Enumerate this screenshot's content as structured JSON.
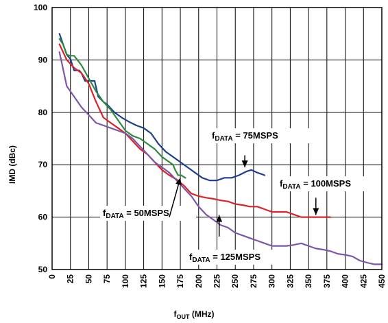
{
  "chart_data": {
    "type": "line",
    "title": "",
    "xlabel": "f",
    "xlabel_sub": "OUT",
    "xlabel_unit": " (MHz)",
    "ylabel": "IMD (dBc)",
    "xlim": [
      0,
      450
    ],
    "ylim": [
      50,
      100
    ],
    "xticks": [
      0,
      25,
      50,
      75,
      100,
      125,
      150,
      175,
      200,
      225,
      250,
      275,
      300,
      325,
      350,
      375,
      400,
      425,
      450
    ],
    "yticks": [
      50,
      60,
      70,
      80,
      90,
      100
    ],
    "grid": true,
    "series": [
      {
        "name": "fDATA = 75MSPS",
        "color": "#1f3f8f",
        "points": [
          [
            10,
            95
          ],
          [
            15,
            93
          ],
          [
            20,
            91
          ],
          [
            25,
            90.2
          ],
          [
            30,
            88
          ],
          [
            37,
            88
          ],
          [
            40,
            87.5
          ],
          [
            45,
            86
          ],
          [
            55,
            86
          ],
          [
            58,
            86
          ],
          [
            63,
            83
          ],
          [
            70,
            82
          ],
          [
            75,
            81.5
          ],
          [
            85,
            80
          ],
          [
            95,
            79
          ],
          [
            105,
            78.2
          ],
          [
            115,
            77.5
          ],
          [
            125,
            77
          ],
          [
            135,
            76
          ],
          [
            145,
            74
          ],
          [
            155,
            72.5
          ],
          [
            165,
            71.5
          ],
          [
            175,
            70.5
          ],
          [
            185,
            69.5
          ],
          [
            195,
            68.5
          ],
          [
            205,
            67.5
          ],
          [
            215,
            67
          ],
          [
            225,
            67
          ],
          [
            235,
            67.5
          ],
          [
            245,
            67.5
          ],
          [
            255,
            68
          ],
          [
            265,
            68.7
          ],
          [
            272,
            69
          ],
          [
            280,
            68.5
          ],
          [
            290,
            68
          ]
        ]
      },
      {
        "name": "fDATA = 100MSPS",
        "color": "#d8232a",
        "points": [
          [
            10,
            93
          ],
          [
            20,
            90
          ],
          [
            30,
            88.5
          ],
          [
            40,
            87.5
          ],
          [
            50,
            85.5
          ],
          [
            60,
            82
          ],
          [
            70,
            79
          ],
          [
            80,
            78
          ],
          [
            90,
            77
          ],
          [
            100,
            76
          ],
          [
            110,
            74.5
          ],
          [
            120,
            73
          ],
          [
            130,
            72
          ],
          [
            140,
            70.5
          ],
          [
            150,
            69
          ],
          [
            160,
            68
          ],
          [
            170,
            67.2
          ],
          [
            180,
            66
          ],
          [
            190,
            64.5
          ],
          [
            200,
            64
          ],
          [
            210,
            63.7
          ],
          [
            220,
            63.5
          ],
          [
            230,
            63.2
          ],
          [
            240,
            63
          ],
          [
            250,
            62.5
          ],
          [
            260,
            62.3
          ],
          [
            270,
            62
          ],
          [
            280,
            62
          ],
          [
            290,
            61.5
          ],
          [
            300,
            61
          ],
          [
            310,
            61
          ],
          [
            320,
            61
          ],
          [
            330,
            60.5
          ],
          [
            340,
            60
          ],
          [
            350,
            60
          ],
          [
            360,
            60
          ],
          [
            370,
            60
          ],
          [
            380,
            60
          ]
        ]
      },
      {
        "name": "fDATA = 125MSPS",
        "color": "#7e56a8",
        "points": [
          [
            10,
            91.5
          ],
          [
            20,
            85
          ],
          [
            30,
            83
          ],
          [
            40,
            81
          ],
          [
            50,
            79.5
          ],
          [
            60,
            78
          ],
          [
            70,
            77.5
          ],
          [
            80,
            77
          ],
          [
            90,
            76.5
          ],
          [
            100,
            76
          ],
          [
            110,
            75
          ],
          [
            120,
            73.5
          ],
          [
            130,
            72
          ],
          [
            140,
            70.5
          ],
          [
            150,
            69.5
          ],
          [
            160,
            68.5
          ],
          [
            170,
            67
          ],
          [
            180,
            65.5
          ],
          [
            190,
            64
          ],
          [
            200,
            62
          ],
          [
            210,
            60.5
          ],
          [
            220,
            59.5
          ],
          [
            230,
            58.5
          ],
          [
            240,
            58
          ],
          [
            250,
            57
          ],
          [
            260,
            56.5
          ],
          [
            270,
            56
          ],
          [
            280,
            55.5
          ],
          [
            290,
            55
          ],
          [
            300,
            54.5
          ],
          [
            310,
            54.5
          ],
          [
            320,
            54.5
          ],
          [
            330,
            54.7
          ],
          [
            340,
            55
          ],
          [
            350,
            54.5
          ],
          [
            360,
            54
          ],
          [
            370,
            53.8
          ],
          [
            380,
            53.5
          ],
          [
            390,
            53
          ],
          [
            400,
            52.8
          ],
          [
            410,
            52.5
          ],
          [
            420,
            51.7
          ],
          [
            430,
            51.3
          ],
          [
            440,
            51
          ],
          [
            450,
            51
          ]
        ]
      },
      {
        "name": "fDATA = 50MSPS",
        "color": "#2e8b3e",
        "points": [
          [
            10,
            94
          ],
          [
            15,
            93
          ],
          [
            20,
            91
          ],
          [
            25,
            90.8
          ],
          [
            30,
            90.8
          ],
          [
            40,
            89
          ],
          [
            50,
            86.5
          ],
          [
            60,
            84
          ],
          [
            70,
            82
          ],
          [
            80,
            80.5
          ],
          [
            90,
            78.5
          ],
          [
            100,
            76.5
          ],
          [
            110,
            75.5
          ],
          [
            120,
            75
          ],
          [
            130,
            74
          ],
          [
            140,
            73
          ],
          [
            150,
            71.5
          ],
          [
            160,
            70.5
          ],
          [
            165,
            70
          ],
          [
            168,
            69
          ],
          [
            172,
            68
          ],
          [
            176,
            68
          ],
          [
            182,
            67.5
          ]
        ]
      }
    ],
    "annotations": [
      {
        "text": "f",
        "sub": "DATA",
        "rest": " = 75MSPS",
        "arrow_to": [
          263,
          69.5
        ],
        "arrow_from": [
          263,
          71.8
        ]
      },
      {
        "text": "f",
        "sub": "DATA",
        "rest": " = 100MSPS",
        "arrow_to": [
          360,
          60.4
        ],
        "arrow_from": [
          360,
          63.7
        ]
      },
      {
        "text": "f",
        "sub": "DATA",
        "rest": " = 50MSPS",
        "arrow_to": [
          175,
          67.5
        ],
        "arrow_from": [
          160,
          60
        ]
      },
      {
        "text": "f",
        "sub": "DATA",
        "rest": " = 125MSPS",
        "arrow_to": [
          228,
          60.4
        ],
        "arrow_from": [
          228,
          56.3
        ]
      }
    ]
  }
}
